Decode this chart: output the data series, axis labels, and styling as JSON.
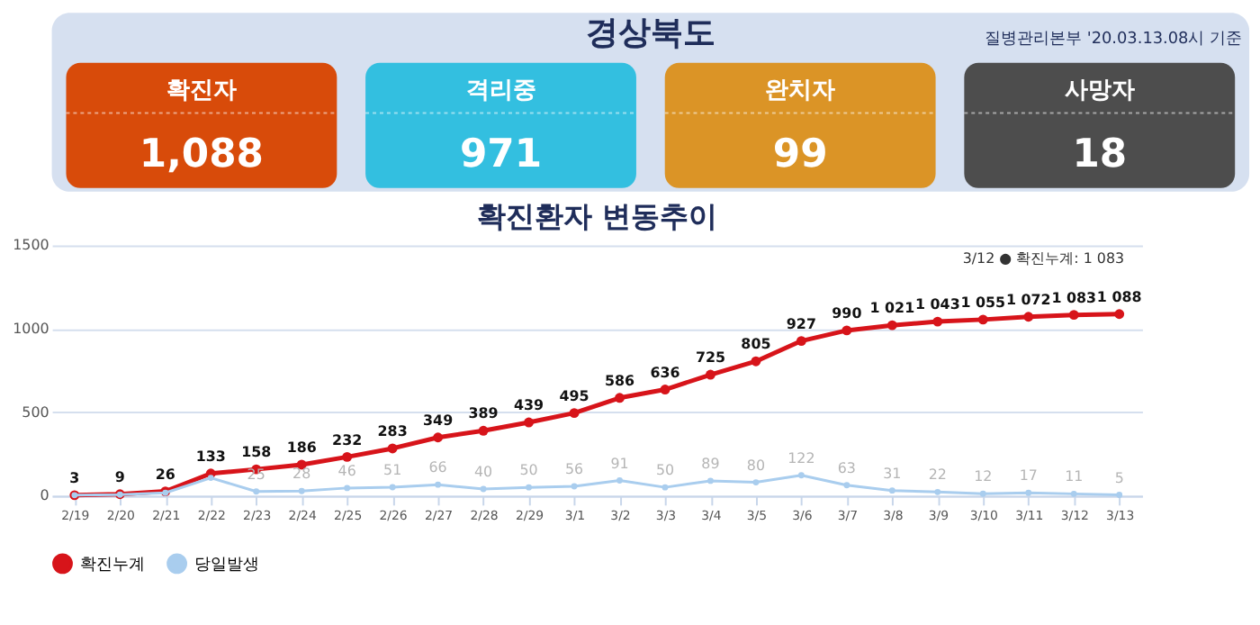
{
  "chart_data": [
    {
      "type": "other",
      "title": "경상북도",
      "categories": [
        "확진자",
        "격리중",
        "완치자",
        "사망자"
      ],
      "value_labels": [
        "1,088",
        "971",
        "99",
        "18"
      ],
      "colors": [
        "#d84b0a",
        "#33bfe0",
        "#db9426",
        "#4d4d4d"
      ],
      "annotations": [
        "질병관리본부 '20.03.13.08시 기준"
      ]
    },
    {
      "type": "line",
      "title": "확진환자 변동추이",
      "categories": [
        "2/19",
        "2/20",
        "2/21",
        "2/22",
        "2/23",
        "2/24",
        "2/25",
        "2/26",
        "2/27",
        "2/28",
        "2/29",
        "3/1",
        "3/2",
        "3/3",
        "3/4",
        "3/5",
        "3/6",
        "3/7",
        "3/8",
        "3/9",
        "3/10",
        "3/11",
        "3/12",
        "3/13"
      ],
      "series": [
        {
          "name": "확진누계",
          "color": "#d7141a",
          "values": [
            3,
            9,
            26,
            133,
            158,
            186,
            232,
            283,
            349,
            389,
            439,
            495,
            586,
            636,
            725,
            805,
            927,
            990,
            1021,
            1043,
            1055,
            1072,
            1083,
            1088
          ],
          "value_labels": [
            "3",
            "9",
            "26",
            "133",
            "158",
            "186",
            "232",
            "283",
            "349",
            "389",
            "439",
            "495",
            "586",
            "636",
            "725",
            "805",
            "927",
            "990",
            "1 021",
            "1 043",
            "1 055",
            "1 072",
            "1 083",
            "1 088"
          ]
        },
        {
          "name": "당일발생",
          "color": "#a9cdee",
          "values": [
            3,
            6,
            17,
            107,
            25,
            28,
            46,
            51,
            66,
            40,
            50,
            56,
            91,
            50,
            89,
            80,
            122,
            63,
            31,
            22,
            12,
            17,
            11,
            5
          ],
          "value_labels": [
            null,
            null,
            null,
            null,
            "25",
            "28",
            "46",
            "51",
            "66",
            "40",
            "50",
            "56",
            "91",
            "50",
            "89",
            "80",
            "122",
            "63",
            "31",
            "22",
            "12",
            "17",
            "11",
            "5"
          ]
        }
      ],
      "ylim": [
        0,
        1500
      ],
      "yticks": [
        0,
        500,
        1000,
        1500
      ],
      "grid": "y",
      "legend": "bottom",
      "marker": "circle",
      "line_style": "solid",
      "annotations": [
        "3/12 ● 확진누계: 1 083"
      ]
    }
  ]
}
